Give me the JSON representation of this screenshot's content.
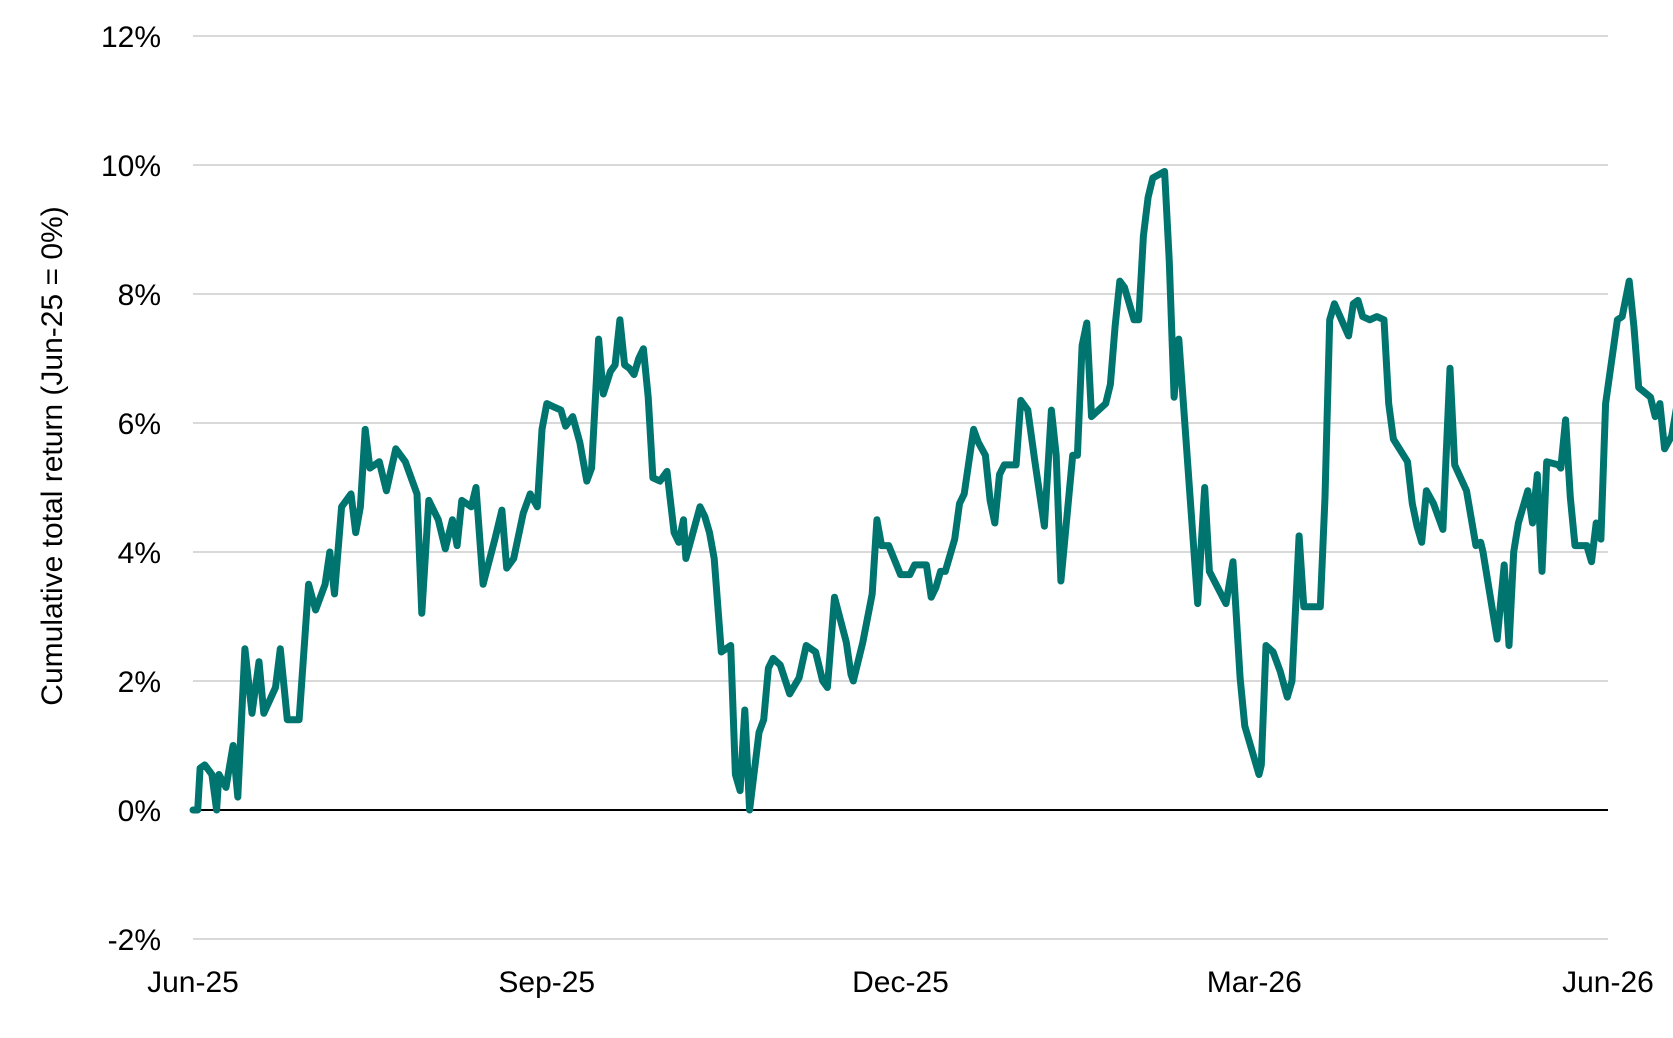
{
  "chart_data": {
    "type": "line",
    "title": "",
    "xlabel": "",
    "ylabel": "Cumulative total return (Jun-25 = 0%)",
    "ylim": [
      -2,
      12
    ],
    "y_tick_values": [
      -2,
      0,
      2,
      4,
      6,
      8,
      10,
      12
    ],
    "y_tick_labels": [
      "-2%",
      "0%",
      "2%",
      "4%",
      "6%",
      "8%",
      "10%",
      "12%"
    ],
    "x_tick_labels": [
      "Jun-25",
      "Sep-25",
      "Dec-25",
      "Mar-26",
      "Jun-26"
    ],
    "x_range_months": [
      "Jun-25",
      "Jun-26"
    ],
    "grid": true,
    "legend": "none",
    "colors": {
      "series": "#00756f",
      "grid": "#d9d9d9",
      "zero_line": "#000000"
    },
    "series": [
      {
        "x": [
          "Jun-25",
          "Jul-25",
          "Aug-25",
          "Sep-25",
          "Oct-25",
          "Nov-25",
          "Dec-25",
          "Jan-26",
          "Feb-26",
          "Mar-26",
          "Apr-26",
          "May-26",
          "Jun-26"
        ],
        "values": [
          [
            0.0,
            0.0
          ],
          [
            0.02,
            0.0
          ],
          [
            0.03,
            0.65
          ],
          [
            0.05,
            0.7
          ],
          [
            0.08,
            0.55
          ],
          [
            0.1,
            0.0
          ],
          [
            0.11,
            0.55
          ],
          [
            0.14,
            0.35
          ],
          [
            0.17,
            1.0
          ],
          [
            0.19,
            0.2
          ],
          [
            0.22,
            2.5
          ],
          [
            0.25,
            1.5
          ],
          [
            0.28,
            2.3
          ],
          [
            0.3,
            1.5
          ],
          [
            0.35,
            1.9
          ],
          [
            0.37,
            2.5
          ],
          [
            0.4,
            1.4
          ],
          [
            0.45,
            1.4
          ],
          [
            0.49,
            3.5
          ],
          [
            0.52,
            3.1
          ],
          [
            0.56,
            3.5
          ],
          [
            0.58,
            4.0
          ],
          [
            0.6,
            3.35
          ],
          [
            0.63,
            4.7
          ],
          [
            0.67,
            4.9
          ],
          [
            0.69,
            4.3
          ],
          [
            0.71,
            4.7
          ],
          [
            0.73,
            5.9
          ],
          [
            0.75,
            5.3
          ],
          [
            0.79,
            5.4
          ],
          [
            0.82,
            4.95
          ],
          [
            0.86,
            5.6
          ],
          [
            0.9,
            5.4
          ],
          [
            0.95,
            4.9
          ],
          [
            0.97,
            3.05
          ],
          [
            1.0,
            4.8
          ],
          [
            1.04,
            4.5
          ],
          [
            1.07,
            4.05
          ],
          [
            1.1,
            4.5
          ],
          [
            1.12,
            4.1
          ],
          [
            1.14,
            4.8
          ],
          [
            1.18,
            4.7
          ],
          [
            1.2,
            5.0
          ],
          [
            1.23,
            3.5
          ],
          [
            1.28,
            4.2
          ],
          [
            1.31,
            4.65
          ],
          [
            1.33,
            3.75
          ],
          [
            1.36,
            3.9
          ],
          [
            1.4,
            4.6
          ],
          [
            1.43,
            4.9
          ],
          [
            1.46,
            4.7
          ],
          [
            1.48,
            5.9
          ],
          [
            1.5,
            6.3
          ],
          [
            1.53,
            6.25
          ],
          [
            1.56,
            6.2
          ],
          [
            1.58,
            5.95
          ],
          [
            1.61,
            6.1
          ],
          [
            1.64,
            5.7
          ],
          [
            1.67,
            5.1
          ],
          [
            1.69,
            5.3
          ],
          [
            1.72,
            7.3
          ],
          [
            1.74,
            6.45
          ],
          [
            1.77,
            6.8
          ],
          [
            1.79,
            6.9
          ],
          [
            1.81,
            7.6
          ],
          [
            1.83,
            6.9
          ],
          [
            1.85,
            6.85
          ],
          [
            1.87,
            6.75
          ],
          [
            1.89,
            7.0
          ],
          [
            1.91,
            7.15
          ],
          [
            1.93,
            6.4
          ],
          [
            1.95,
            5.15
          ],
          [
            1.98,
            5.1
          ],
          [
            2.01,
            5.25
          ],
          [
            2.04,
            4.3
          ],
          [
            2.06,
            4.15
          ],
          [
            2.08,
            4.5
          ],
          [
            2.09,
            3.9
          ],
          [
            2.12,
            4.3
          ],
          [
            2.15,
            4.7
          ],
          [
            2.17,
            4.55
          ],
          [
            2.19,
            4.3
          ],
          [
            2.21,
            3.9
          ],
          [
            2.24,
            2.45
          ],
          [
            2.28,
            2.55
          ],
          [
            2.3,
            0.55
          ],
          [
            2.32,
            0.3
          ],
          [
            2.34,
            1.55
          ],
          [
            2.36,
            0.0
          ],
          [
            2.4,
            1.2
          ],
          [
            2.42,
            1.4
          ],
          [
            2.44,
            2.2
          ],
          [
            2.46,
            2.35
          ],
          [
            2.49,
            2.25
          ],
          [
            2.53,
            1.8
          ],
          [
            2.57,
            2.05
          ],
          [
            2.6,
            2.55
          ],
          [
            2.64,
            2.45
          ],
          [
            2.67,
            2.0
          ],
          [
            2.69,
            1.9
          ],
          [
            2.72,
            3.3
          ],
          [
            2.77,
            2.6
          ],
          [
            2.79,
            2.1
          ],
          [
            2.8,
            2.0
          ],
          [
            2.84,
            2.6
          ],
          [
            2.88,
            3.35
          ],
          [
            2.9,
            4.5
          ],
          [
            2.92,
            4.1
          ],
          [
            2.95,
            4.1
          ],
          [
            3.0,
            3.65
          ],
          [
            3.04,
            3.65
          ],
          [
            3.06,
            3.8
          ],
          [
            3.11,
            3.8
          ],
          [
            3.13,
            3.3
          ],
          [
            3.15,
            3.45
          ],
          [
            3.17,
            3.7
          ],
          [
            3.19,
            3.7
          ],
          [
            3.23,
            4.2
          ],
          [
            3.25,
            4.75
          ],
          [
            3.27,
            4.9
          ],
          [
            3.31,
            5.9
          ],
          [
            3.33,
            5.7
          ],
          [
            3.36,
            5.5
          ],
          [
            3.38,
            4.8
          ],
          [
            3.4,
            4.45
          ],
          [
            3.42,
            5.2
          ],
          [
            3.44,
            5.35
          ],
          [
            3.49,
            5.35
          ],
          [
            3.51,
            6.35
          ],
          [
            3.54,
            6.2
          ],
          [
            3.57,
            5.4
          ],
          [
            3.61,
            4.4
          ],
          [
            3.64,
            6.2
          ],
          [
            3.66,
            5.5
          ],
          [
            3.68,
            3.55
          ],
          [
            3.73,
            5.5
          ],
          [
            3.75,
            5.5
          ],
          [
            3.77,
            7.2
          ],
          [
            3.79,
            7.55
          ],
          [
            3.81,
            6.1
          ],
          [
            3.84,
            6.2
          ],
          [
            3.87,
            6.3
          ],
          [
            3.89,
            6.6
          ],
          [
            3.91,
            7.5
          ],
          [
            3.93,
            8.2
          ],
          [
            3.95,
            8.1
          ],
          [
            3.99,
            7.6
          ],
          [
            4.01,
            7.6
          ],
          [
            4.03,
            8.9
          ],
          [
            4.05,
            9.5
          ],
          [
            4.07,
            9.8
          ],
          [
            4.12,
            9.9
          ],
          [
            4.14,
            8.5
          ],
          [
            4.16,
            6.4
          ],
          [
            4.18,
            7.3
          ],
          [
            4.26,
            3.2
          ],
          [
            4.29,
            5.0
          ],
          [
            4.31,
            3.7
          ],
          [
            4.38,
            3.2
          ],
          [
            4.41,
            3.85
          ],
          [
            4.44,
            2.05
          ],
          [
            4.46,
            1.3
          ],
          [
            4.52,
            0.55
          ],
          [
            4.53,
            0.7
          ],
          [
            4.55,
            2.55
          ],
          [
            4.58,
            2.45
          ],
          [
            4.61,
            2.15
          ],
          [
            4.64,
            1.75
          ],
          [
            4.66,
            2.0
          ],
          [
            4.69,
            4.25
          ],
          [
            4.71,
            3.15
          ],
          [
            4.78,
            3.15
          ],
          [
            4.8,
            4.85
          ],
          [
            4.82,
            7.6
          ],
          [
            4.84,
            7.85
          ],
          [
            4.87,
            7.6
          ],
          [
            4.9,
            7.35
          ],
          [
            4.92,
            7.85
          ],
          [
            4.94,
            7.9
          ],
          [
            4.96,
            7.65
          ],
          [
            4.99,
            7.6
          ],
          [
            5.02,
            7.65
          ],
          [
            5.05,
            7.6
          ],
          [
            5.07,
            6.3
          ],
          [
            5.09,
            5.75
          ],
          [
            5.15,
            5.4
          ],
          [
            5.17,
            4.75
          ],
          [
            5.19,
            4.4
          ],
          [
            5.21,
            4.15
          ],
          [
            5.23,
            4.95
          ],
          [
            5.26,
            4.75
          ],
          [
            5.3,
            4.35
          ],
          [
            5.33,
            6.85
          ],
          [
            5.35,
            5.35
          ],
          [
            5.4,
            4.95
          ],
          [
            5.44,
            4.1
          ],
          [
            5.46,
            4.15
          ],
          [
            5.47,
            4.0
          ],
          [
            5.53,
            2.65
          ],
          [
            5.56,
            3.8
          ],
          [
            5.58,
            2.55
          ],
          [
            5.6,
            4.0
          ],
          [
            5.62,
            4.45
          ],
          [
            5.66,
            4.95
          ],
          [
            5.68,
            4.45
          ],
          [
            5.7,
            5.2
          ],
          [
            5.72,
            3.7
          ],
          [
            5.74,
            5.4
          ],
          [
            5.79,
            5.35
          ],
          [
            5.8,
            5.3
          ],
          [
            5.82,
            6.05
          ],
          [
            5.84,
            4.85
          ],
          [
            5.86,
            4.1
          ],
          [
            5.91,
            4.1
          ],
          [
            5.93,
            3.85
          ],
          [
            5.95,
            4.45
          ],
          [
            5.97,
            4.2
          ],
          [
            5.99,
            6.3
          ],
          [
            6.04,
            7.6
          ],
          [
            6.06,
            7.65
          ],
          [
            6.09,
            8.2
          ],
          [
            6.11,
            7.5
          ],
          [
            6.13,
            6.55
          ],
          [
            6.18,
            6.4
          ],
          [
            6.2,
            6.1
          ],
          [
            6.22,
            6.3
          ],
          [
            6.24,
            5.6
          ],
          [
            6.27,
            5.8
          ],
          [
            6.31,
            6.65
          ],
          [
            6.33,
            6.1
          ]
        ]
      }
    ]
  }
}
